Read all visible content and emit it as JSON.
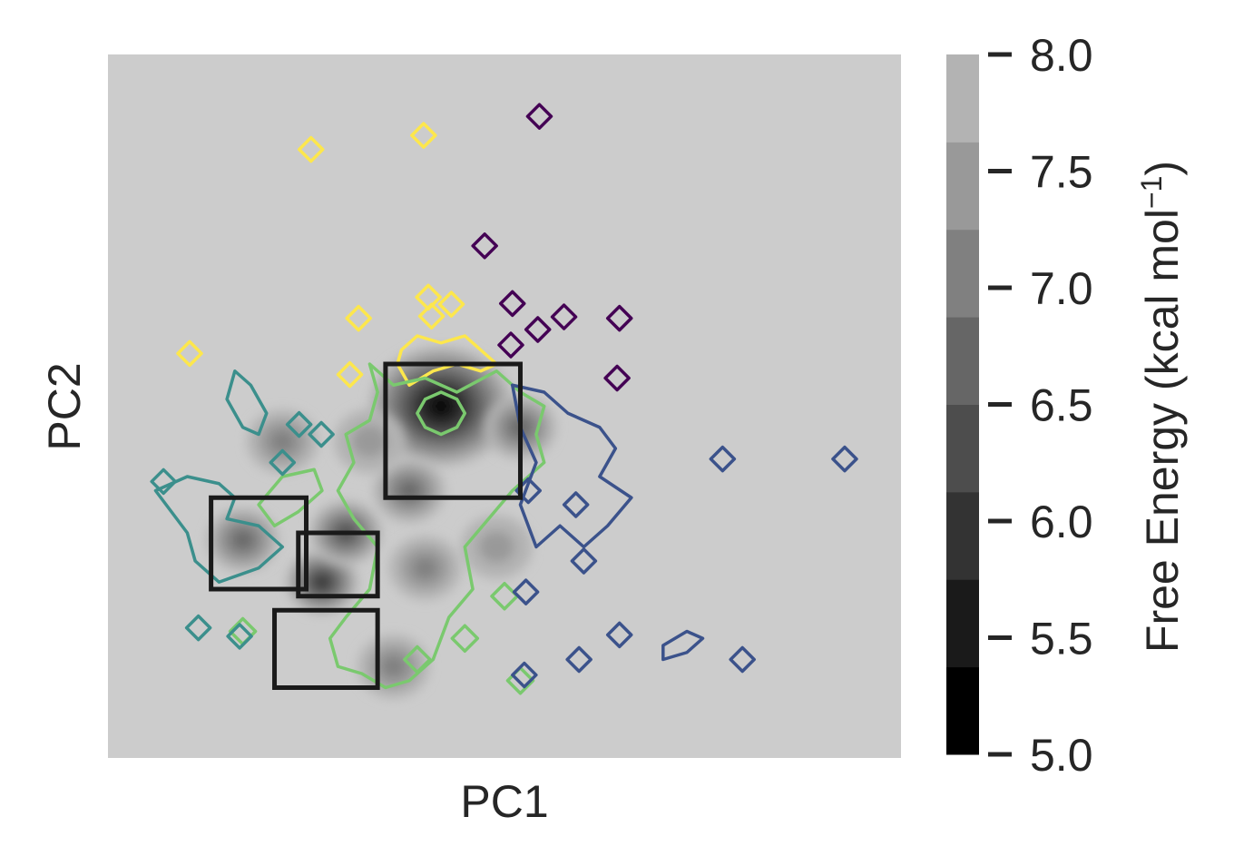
{
  "chart_data": {
    "type": "heatmap",
    "title": "",
    "xlabel": "PC1",
    "ylabel": "PC2",
    "x_ticks_visible": false,
    "y_ticks_visible": false,
    "background_color": "#cccccc",
    "colorbar": {
      "label": "Free Energy (kcal mol",
      "label_superscript": "−1",
      "label_suffix": ")",
      "range": [
        5.0,
        8.0
      ],
      "ticks": [
        "5.0",
        "5.5",
        "6.0",
        "6.5",
        "7.0",
        "7.5",
        "8.0"
      ],
      "levels": [
        5.0,
        5.375,
        5.75,
        6.125,
        6.5,
        6.875,
        7.25,
        7.625,
        8.0
      ],
      "colormap": "gray"
    },
    "free_energy_minima": [
      {
        "x": 0.42,
        "y": 0.5,
        "depth": 5.0
      },
      {
        "x": 0.27,
        "y": 0.25,
        "depth": 5.7
      },
      {
        "x": 0.3,
        "y": 0.32,
        "depth": 6.0
      },
      {
        "x": 0.17,
        "y": 0.31,
        "depth": 6.3
      },
      {
        "x": 0.38,
        "y": 0.38,
        "depth": 6.3
      },
      {
        "x": 0.52,
        "y": 0.47,
        "depth": 6.5
      },
      {
        "x": 0.36,
        "y": 0.13,
        "depth": 6.6
      },
      {
        "x": 0.22,
        "y": 0.45,
        "depth": 6.7
      },
      {
        "x": 0.4,
        "y": 0.27,
        "depth": 6.8
      },
      {
        "x": 0.49,
        "y": 0.3,
        "depth": 6.9
      },
      {
        "x": 0.33,
        "y": 0.45,
        "depth": 6.9
      }
    ],
    "cluster_colors": {
      "purple": "#440154",
      "blue": "#3b528b",
      "teal": "#3b8f8c",
      "green": "#7ac96e",
      "yellow": "#fde74c"
    },
    "highlight_boxes": [
      {
        "x0": 0.35,
        "x1": 0.52,
        "y0": 0.37,
        "y1": 0.56
      },
      {
        "x0": 0.13,
        "x1": 0.25,
        "y0": 0.24,
        "y1": 0.37
      },
      {
        "x0": 0.24,
        "x1": 0.34,
        "y0": 0.23,
        "y1": 0.32
      },
      {
        "x0": 0.21,
        "x1": 0.34,
        "y0": 0.1,
        "y1": 0.21
      }
    ]
  }
}
